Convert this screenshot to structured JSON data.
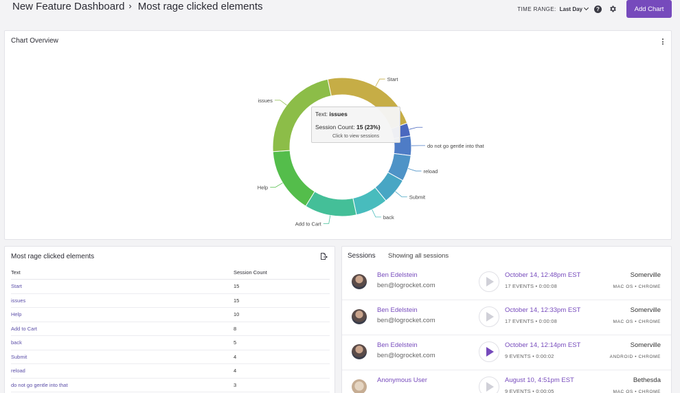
{
  "header": {
    "breadcrumb_root": "New Feature Dashboard",
    "breadcrumb_sep": "›",
    "breadcrumb_current": "Most rage clicked elements",
    "time_range_label": "TIME RANGE:",
    "time_range_value": "Last Day",
    "help_glyph": "?",
    "add_chart_label": "Add Chart"
  },
  "overview": {
    "title": "Chart Overview",
    "tooltip": {
      "text_label": "Text:",
      "text_value": "issues",
      "count_label": "Session Count:",
      "count_value": "15 (23%)",
      "footer": "Click to view sessions"
    }
  },
  "chart_data": {
    "type": "pie",
    "donut": true,
    "categories": [
      "Start",
      "",
      "do not go gentle into that",
      "reload",
      "Submit",
      "back",
      "Add to Cart",
      "Help",
      "issues"
    ],
    "values": [
      15,
      2,
      3,
      4,
      4,
      5,
      8,
      10,
      15
    ],
    "colors": [
      "#c6ad46",
      "#4a68bf",
      "#4e7cc6",
      "#4e93c7",
      "#48a6c4",
      "#48bcbd",
      "#44bf98",
      "#54bd4b",
      "#8cbd48"
    ]
  },
  "rage_table": {
    "title": "Most rage clicked elements",
    "columns": [
      "Text",
      "Session Count"
    ],
    "rows": [
      [
        "Start",
        "15"
      ],
      [
        "issues",
        "15"
      ],
      [
        "Help",
        "10"
      ],
      [
        "Add to Cart",
        "8"
      ],
      [
        "back",
        "5"
      ],
      [
        "Submit",
        "4"
      ],
      [
        "reload",
        "4"
      ],
      [
        "do not go gentle into that",
        "3"
      ]
    ]
  },
  "sessions": {
    "title": "Sessions",
    "subtitle": "Showing all sessions",
    "items": [
      {
        "name": "Ben Edelstein",
        "email": "ben@logrocket.com",
        "date": "October 14, 12:48pm EST",
        "events": "17 EVENTS • 0:00:08",
        "city": "Somerville",
        "os": "MAC OS • CHROME",
        "active": false
      },
      {
        "name": "Ben Edelstein",
        "email": "ben@logrocket.com",
        "date": "October 14, 12:33pm EST",
        "events": "17 EVENTS • 0:00:08",
        "city": "Somerville",
        "os": "MAC OS • CHROME",
        "active": false
      },
      {
        "name": "Ben Edelstein",
        "email": "ben@logrocket.com",
        "date": "October 14, 12:14pm EST",
        "events": "9 EVENTS • 0:00:02",
        "city": "Somerville",
        "os": "ANDROID • CHROME",
        "active": true
      },
      {
        "name": "Anonymous User",
        "email": "",
        "date": "August 10, 4:51pm EST",
        "events": "9 EVENTS • 0:00:05",
        "city": "Bethesda",
        "os": "MAC OS • CHROME",
        "active": false
      }
    ]
  }
}
